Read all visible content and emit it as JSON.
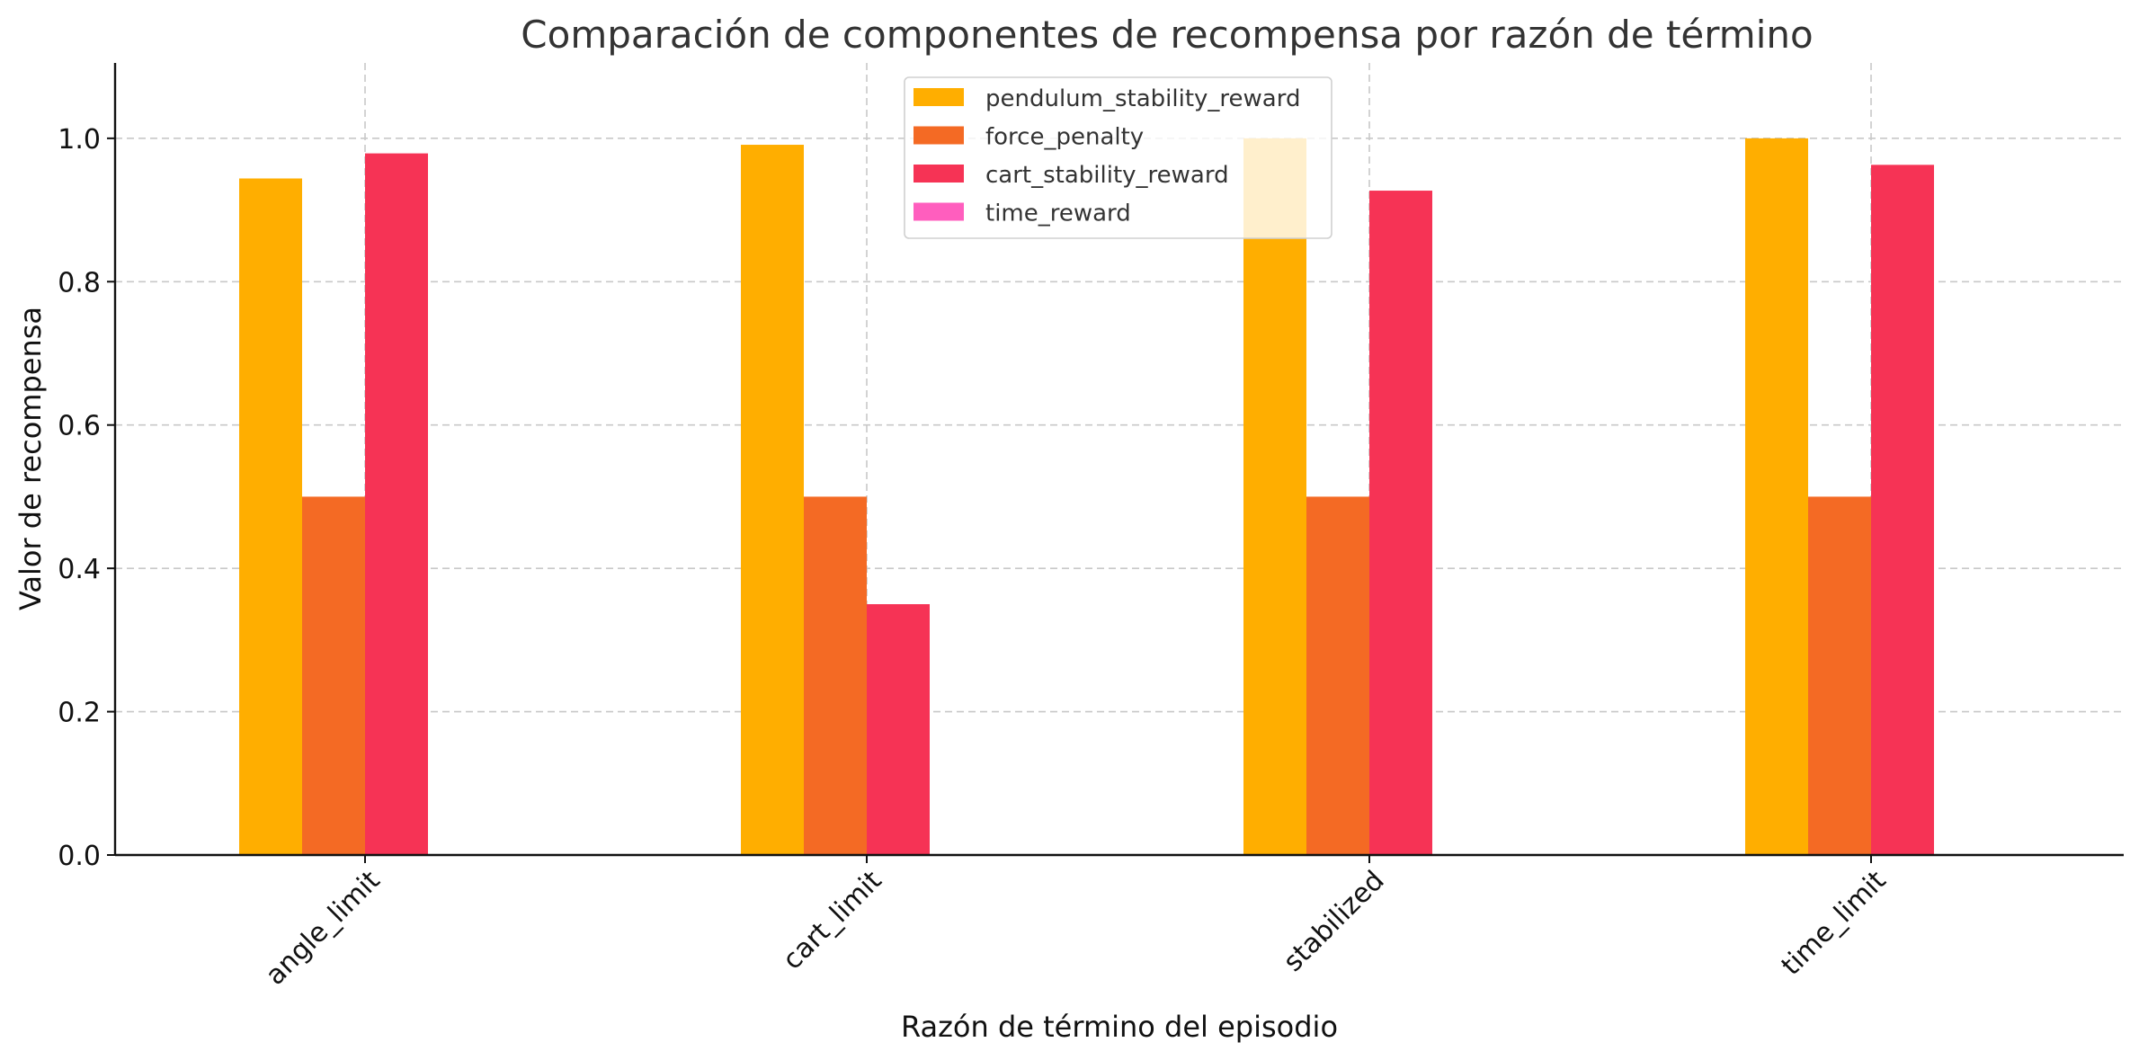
{
  "chart_data": {
    "type": "bar",
    "title": "Comparación de componentes de recompensa por razón de término",
    "xlabel": "Razón de término del episodio",
    "ylabel": "Valor de recompensa",
    "categories": [
      "angle_limit",
      "cart_limit",
      "stabilized",
      "time_limit"
    ],
    "series": [
      {
        "name": "pendulum_stability_reward",
        "color": "#FFAE00",
        "values": [
          0.944,
          0.991,
          1.0,
          1.0
        ]
      },
      {
        "name": "force_penalty",
        "color": "#F46A24",
        "values": [
          0.5,
          0.5,
          0.5,
          0.5
        ]
      },
      {
        "name": "cart_stability_reward",
        "color": "#F63355",
        "values": [
          0.979,
          0.35,
          0.927,
          0.963
        ]
      },
      {
        "name": "time_reward",
        "color": "#FF5EBE",
        "values": [
          0,
          0,
          0,
          0
        ]
      }
    ],
    "ylim": [
      0,
      1.05
    ],
    "yticks": [
      "0.0",
      "0.2",
      "0.4",
      "0.6",
      "0.8",
      "1.0"
    ],
    "grid": true,
    "legend_position": "top-center"
  }
}
